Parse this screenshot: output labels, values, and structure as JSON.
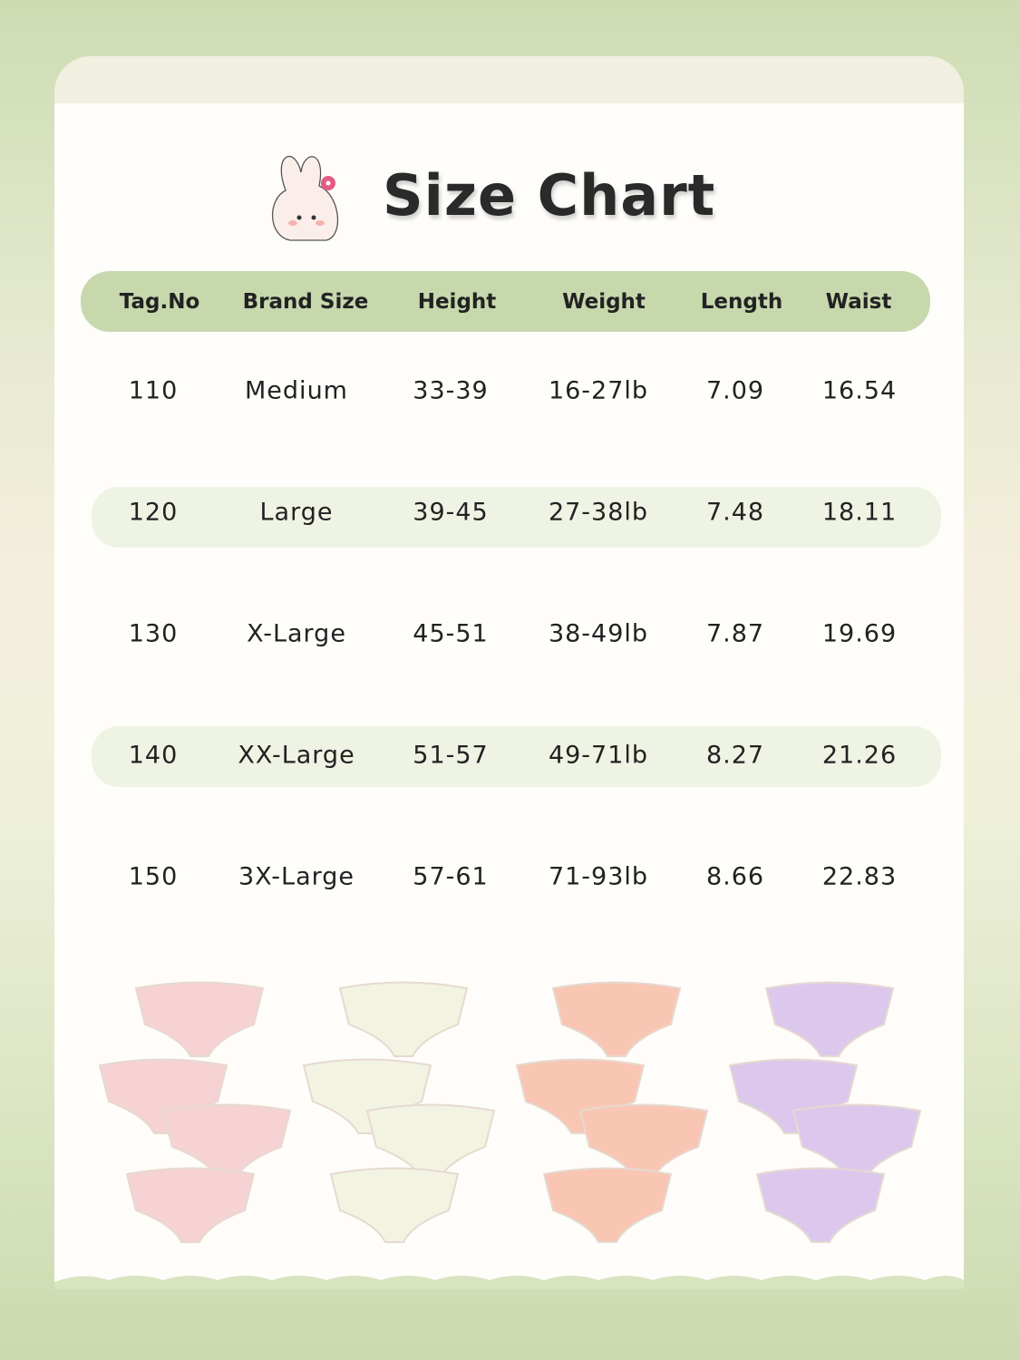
{
  "title": "Size Chart",
  "mascot_icon": "bunny-with-flower",
  "colors": {
    "header_bg": "#c7d8ad",
    "stripe_bg": "#eef3e3",
    "card_bg": "#fefdfa",
    "page_bg": "#cddcb3"
  },
  "table": {
    "headers": [
      "Tag.No",
      "Brand Size",
      "Height",
      "Weight",
      "Length",
      "Waist"
    ],
    "rows": [
      [
        "110",
        "Medium",
        "33-39",
        "16-27lb",
        "7.09",
        "16.54"
      ],
      [
        "120",
        "Large",
        "39-45",
        "27-38lb",
        "7.48",
        "18.11"
      ],
      [
        "130",
        "X-Large",
        "45-51",
        "38-49lb",
        "7.87",
        "19.69"
      ],
      [
        "140",
        "XX-Large",
        "51-57",
        "49-71lb",
        "8.27",
        "21.26"
      ],
      [
        "150",
        "3X-Large",
        "57-61",
        "71-93lb",
        "8.66",
        "22.83"
      ]
    ]
  },
  "products": [
    {
      "name": "pink-briefs-set",
      "color": "#f6d2d4"
    },
    {
      "name": "cream-briefs-set",
      "color": "#f3f3e2"
    },
    {
      "name": "peach-briefs-set",
      "color": "#f8c6b3"
    },
    {
      "name": "lavender-briefs-set",
      "color": "#dcc8ec"
    }
  ]
}
